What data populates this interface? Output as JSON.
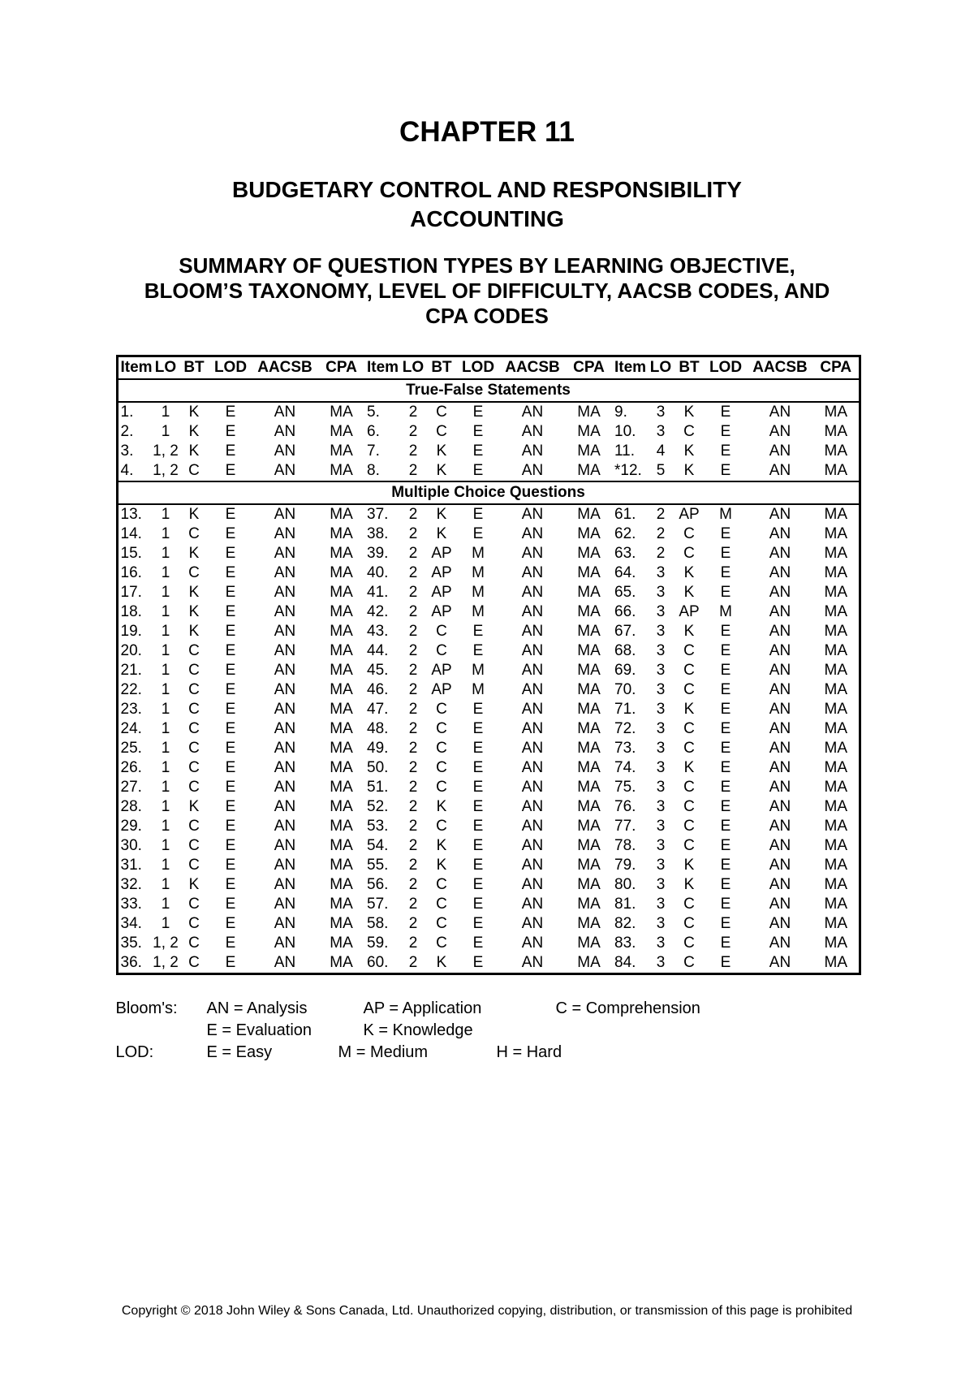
{
  "page": {
    "chapter_title": "CHAPTER 11",
    "chapter_subtitle_lines": [
      "BUDGETARY CONTROL AND RESPONSIBILITY",
      "ACCOUNTING"
    ],
    "summary_heading_lines": [
      "SUMMARY OF QUESTION TYPES BY LEARNING OBJECTIVE,",
      "BLOOM’S TAXONOMY, LEVEL OF DIFFICULTY, AACSB CODES, AND",
      "CPA CODES"
    ],
    "copyright": "Copyright © 2018 John Wiley & Sons Canada, Ltd. Unauthorized copying, distribution, or transmission of this page is prohibited"
  },
  "colors": {
    "text": "#000000",
    "background": "#ffffff",
    "table_border": "#000000"
  },
  "table": {
    "header": [
      "Item",
      "LO",
      "BT",
      "LOD",
      "AACSB",
      "CPA",
      "Item",
      "LO",
      "BT",
      "LOD",
      "AACSB",
      "CPA",
      "Item",
      "LO",
      "BT",
      "LOD",
      "AACSB",
      "CPA"
    ],
    "sections": [
      {
        "title": "True-False Statements",
        "rows": [
          [
            "1.",
            "1",
            "K",
            "E",
            "AN",
            "MA",
            "5.",
            "2",
            "C",
            "E",
            "AN",
            "MA",
            "9.",
            "3",
            "K",
            "E",
            "AN",
            "MA"
          ],
          [
            "2.",
            "1",
            "K",
            "E",
            "AN",
            "MA",
            "6.",
            "2",
            "C",
            "E",
            "AN",
            "MA",
            "10.",
            "3",
            "C",
            "E",
            "AN",
            "MA"
          ],
          [
            "3.",
            "1, 2",
            "K",
            "E",
            "AN",
            "MA",
            "7.",
            "2",
            "K",
            "E",
            "AN",
            "MA",
            "11.",
            "4",
            "K",
            "E",
            "AN",
            "MA"
          ],
          [
            "4.",
            "1, 2",
            "C",
            "E",
            "AN",
            "MA",
            "8.",
            "2",
            "K",
            "E",
            "AN",
            "MA",
            "*12.",
            "5",
            "K",
            "E",
            "AN",
            "MA"
          ]
        ]
      },
      {
        "title": "Multiple Choice Questions",
        "rows": [
          [
            "13.",
            "1",
            "K",
            "E",
            "AN",
            "MA",
            "37.",
            "2",
            "K",
            "E",
            "AN",
            "MA",
            "61.",
            "2",
            "AP",
            "M",
            "AN",
            "MA"
          ],
          [
            "14.",
            "1",
            "C",
            "E",
            "AN",
            "MA",
            "38.",
            "2",
            "K",
            "E",
            "AN",
            "MA",
            "62.",
            "2",
            "C",
            "E",
            "AN",
            "MA"
          ],
          [
            "15.",
            "1",
            "K",
            "E",
            "AN",
            "MA",
            "39.",
            "2",
            "AP",
            "M",
            "AN",
            "MA",
            "63.",
            "2",
            "C",
            "E",
            "AN",
            "MA"
          ],
          [
            "16.",
            "1",
            "C",
            "E",
            "AN",
            "MA",
            "40.",
            "2",
            "AP",
            "M",
            "AN",
            "MA",
            "64.",
            "3",
            "K",
            "E",
            "AN",
            "MA"
          ],
          [
            "17.",
            "1",
            "K",
            "E",
            "AN",
            "MA",
            "41.",
            "2",
            "AP",
            "M",
            "AN",
            "MA",
            "65.",
            "3",
            "K",
            "E",
            "AN",
            "MA"
          ],
          [
            "18.",
            "1",
            "K",
            "E",
            "AN",
            "MA",
            "42.",
            "2",
            "AP",
            "M",
            "AN",
            "MA",
            "66.",
            "3",
            "AP",
            "M",
            "AN",
            "MA"
          ],
          [
            "19.",
            "1",
            "K",
            "E",
            "AN",
            "MA",
            "43.",
            "2",
            "C",
            "E",
            "AN",
            "MA",
            "67.",
            "3",
            "K",
            "E",
            "AN",
            "MA"
          ],
          [
            "20.",
            "1",
            "C",
            "E",
            "AN",
            "MA",
            "44.",
            "2",
            "C",
            "E",
            "AN",
            "MA",
            "68.",
            "3",
            "C",
            "E",
            "AN",
            "MA"
          ],
          [
            "21.",
            "1",
            "C",
            "E",
            "AN",
            "MA",
            "45.",
            "2",
            "AP",
            "M",
            "AN",
            "MA",
            "69.",
            "3",
            "C",
            "E",
            "AN",
            "MA"
          ],
          [
            "22.",
            "1",
            "C",
            "E",
            "AN",
            "MA",
            "46.",
            "2",
            "AP",
            "M",
            "AN",
            "MA",
            "70.",
            "3",
            "C",
            "E",
            "AN",
            "MA"
          ],
          [
            "23.",
            "1",
            "C",
            "E",
            "AN",
            "MA",
            "47.",
            "2",
            "C",
            "E",
            "AN",
            "MA",
            "71.",
            "3",
            "K",
            "E",
            "AN",
            "MA"
          ],
          [
            "24.",
            "1",
            "C",
            "E",
            "AN",
            "MA",
            "48.",
            "2",
            "C",
            "E",
            "AN",
            "MA",
            "72.",
            "3",
            "C",
            "E",
            "AN",
            "MA"
          ],
          [
            "25.",
            "1",
            "C",
            "E",
            "AN",
            "MA",
            "49.",
            "2",
            "C",
            "E",
            "AN",
            "MA",
            "73.",
            "3",
            "C",
            "E",
            "AN",
            "MA"
          ],
          [
            "26.",
            "1",
            "C",
            "E",
            "AN",
            "MA",
            "50.",
            "2",
            "C",
            "E",
            "AN",
            "MA",
            "74.",
            "3",
            "K",
            "E",
            "AN",
            "MA"
          ],
          [
            "27.",
            "1",
            "C",
            "E",
            "AN",
            "MA",
            "51.",
            "2",
            "C",
            "E",
            "AN",
            "MA",
            "75.",
            "3",
            "C",
            "E",
            "AN",
            "MA"
          ],
          [
            "28.",
            "1",
            "K",
            "E",
            "AN",
            "MA",
            "52.",
            "2",
            "K",
            "E",
            "AN",
            "MA",
            "76.",
            "3",
            "C",
            "E",
            "AN",
            "MA"
          ],
          [
            "29.",
            "1",
            "C",
            "E",
            "AN",
            "MA",
            "53.",
            "2",
            "C",
            "E",
            "AN",
            "MA",
            "77.",
            "3",
            "C",
            "E",
            "AN",
            "MA"
          ],
          [
            "30.",
            "1",
            "C",
            "E",
            "AN",
            "MA",
            "54.",
            "2",
            "K",
            "E",
            "AN",
            "MA",
            "78.",
            "3",
            "C",
            "E",
            "AN",
            "MA"
          ],
          [
            "31.",
            "1",
            "C",
            "E",
            "AN",
            "MA",
            "55.",
            "2",
            "K",
            "E",
            "AN",
            "MA",
            "79.",
            "3",
            "K",
            "E",
            "AN",
            "MA"
          ],
          [
            "32.",
            "1",
            "K",
            "E",
            "AN",
            "MA",
            "56.",
            "2",
            "C",
            "E",
            "AN",
            "MA",
            "80.",
            "3",
            "K",
            "E",
            "AN",
            "MA"
          ],
          [
            "33.",
            "1",
            "C",
            "E",
            "AN",
            "MA",
            "57.",
            "2",
            "C",
            "E",
            "AN",
            "MA",
            "81.",
            "3",
            "C",
            "E",
            "AN",
            "MA"
          ],
          [
            "34.",
            "1",
            "C",
            "E",
            "AN",
            "MA",
            "58.",
            "2",
            "C",
            "E",
            "AN",
            "MA",
            "82.",
            "3",
            "C",
            "E",
            "AN",
            "MA"
          ],
          [
            "35.",
            "1, 2",
            "C",
            "E",
            "AN",
            "MA",
            "59.",
            "2",
            "C",
            "E",
            "AN",
            "MA",
            "83.",
            "3",
            "C",
            "E",
            "AN",
            "MA"
          ],
          [
            "36.",
            "1, 2",
            "C",
            "E",
            "AN",
            "MA",
            "60.",
            "2",
            "K",
            "E",
            "AN",
            "MA",
            "84.",
            "3",
            "C",
            "E",
            "AN",
            "MA"
          ]
        ]
      }
    ]
  },
  "legend": {
    "blooms_label": "Bloom's:",
    "lod_label": "LOD:",
    "blooms_line1": [
      "AN = Analysis",
      "AP = Application",
      "C = Comprehension"
    ],
    "blooms_line2": [
      "E = Evaluation",
      "K = Knowledge"
    ],
    "lod_line": [
      "E = Easy",
      "M = Medium",
      "H = Hard"
    ]
  }
}
